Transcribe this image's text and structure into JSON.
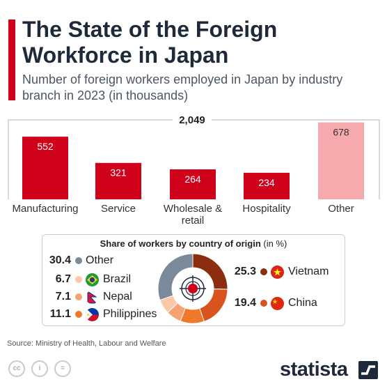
{
  "header": {
    "title": "The State of the Foreign Workforce in Japan",
    "subtitle": "Number of foreign workers employed in Japan by industry branch in 2023 (in thousands)",
    "accent_color": "#d0021b"
  },
  "chart_data": [
    {
      "type": "bar",
      "total_label": "2,049",
      "categories": [
        "Manufacturing",
        "Service",
        "Wholesale & retail",
        "Hospitality",
        "Other"
      ],
      "values": [
        552,
        321,
        264,
        234,
        678
      ],
      "colors": [
        "#d0021b",
        "#d0021b",
        "#d0021b",
        "#d0021b",
        "#f6aaad"
      ],
      "ylim": [
        0,
        700
      ]
    },
    {
      "type": "pie",
      "title": "Share of workers by country of origin",
      "unit": "(in %)",
      "slices": [
        {
          "label": "Vietnam",
          "value": 25.3,
          "color": "#8b2e0f"
        },
        {
          "label": "China",
          "value": 19.4,
          "color": "#d9531e"
        },
        {
          "label": "Philippines",
          "value": 11.1,
          "color": "#f0782a"
        },
        {
          "label": "Nepal",
          "value": 7.1,
          "color": "#f6a172"
        },
        {
          "label": "Brazil",
          "value": 6.7,
          "color": "#fcc8a8"
        },
        {
          "label": "Other",
          "value": 30.4,
          "color": "#7a8a9a"
        }
      ]
    }
  ],
  "footer": {
    "source": "Source: Ministry of Health, Labour and Welfare",
    "brand": "statista",
    "license_icons": [
      "cc-icon",
      "attribution-icon",
      "no-derivatives-icon"
    ]
  }
}
